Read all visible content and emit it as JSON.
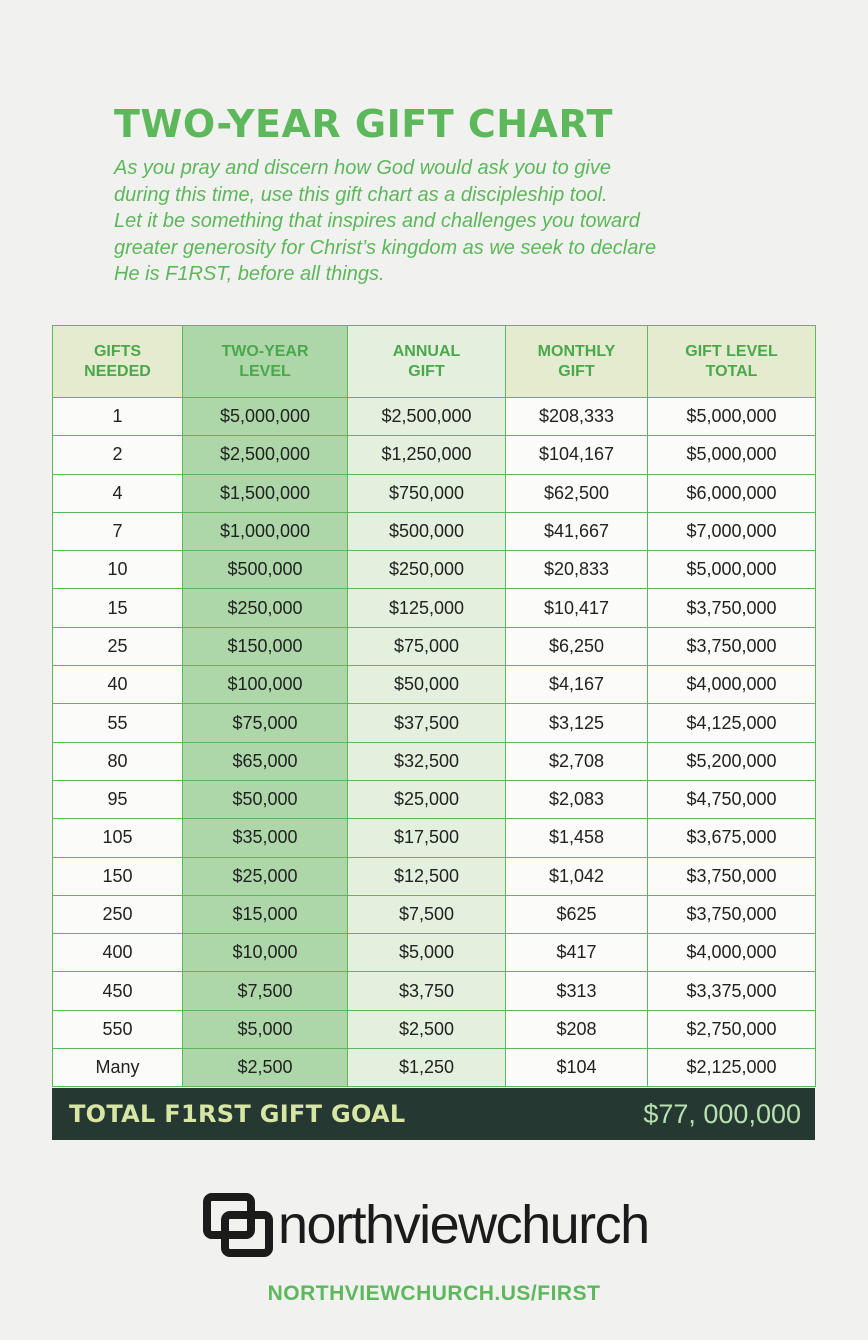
{
  "header": {
    "title": "TWO-YEAR GIFT CHART",
    "intro_lines": [
      "As you pray and discern how God would ask you to give",
      "during this time, use this gift chart as a discipleship tool.",
      "Let it be something that inspires and challenges you toward",
      "greater generosity for Christ’s kingdom as we seek to declare",
      "He is F1RST, before all things."
    ]
  },
  "table": {
    "headers": [
      [
        "GIFTS",
        "NEEDED"
      ],
      [
        "TWO-YEAR",
        "LEVEL"
      ],
      [
        "ANNUAL",
        "GIFT"
      ],
      [
        "MONTHLY",
        "GIFT"
      ],
      [
        "GIFT LEVEL",
        "TOTAL"
      ]
    ],
    "rows": [
      [
        "1",
        "$5,000,000",
        "$2,500,000",
        "$208,333",
        "$5,000,000"
      ],
      [
        "2",
        "$2,500,000",
        "$1,250,000",
        "$104,167",
        "$5,000,000"
      ],
      [
        "4",
        "$1,500,000",
        "$750,000",
        "$62,500",
        "$6,000,000"
      ],
      [
        "7",
        "$1,000,000",
        "$500,000",
        "$41,667",
        "$7,000,000"
      ],
      [
        "10",
        "$500,000",
        "$250,000",
        "$20,833",
        "$5,000,000"
      ],
      [
        "15",
        "$250,000",
        "$125,000",
        "$10,417",
        "$3,750,000"
      ],
      [
        "25",
        "$150,000",
        "$75,000",
        "$6,250",
        "$3,750,000"
      ],
      [
        "40",
        "$100,000",
        "$50,000",
        "$4,167",
        "$4,000,000"
      ],
      [
        "55",
        "$75,000",
        "$37,500",
        "$3,125",
        "$4,125,000"
      ],
      [
        "80",
        "$65,000",
        "$32,500",
        "$2,708",
        "$5,200,000"
      ],
      [
        "95",
        "$50,000",
        "$25,000",
        "$2,083",
        "$4,750,000"
      ],
      [
        "105",
        "$35,000",
        "$17,500",
        "$1,458",
        "$3,675,000"
      ],
      [
        "150",
        "$25,000",
        "$12,500",
        "$1,042",
        "$3,750,000"
      ],
      [
        "250",
        "$15,000",
        "$7,500",
        "$625",
        "$3,750,000"
      ],
      [
        "400",
        "$10,000",
        "$5,000",
        "$417",
        "$4,000,000"
      ],
      [
        "450",
        "$7,500",
        "$3,750",
        "$313",
        "$3,375,000"
      ],
      [
        "550",
        "$5,000",
        "$2,500",
        "$208",
        "$2,750,000"
      ],
      [
        "Many",
        "$2,500",
        "$1,250",
        "$104",
        "$2,125,000"
      ]
    ]
  },
  "total": {
    "label": "TOTAL F1RST GIFT GOAL",
    "value": "$77, 000,000"
  },
  "footer": {
    "logo_text": "northviewchurch",
    "logo_icon": "northview-logo-mark",
    "url": "NORTHVIEWCHURCH.US/FIRST"
  },
  "colors": {
    "accent_green": "#5cb85a",
    "header_bg": "#e4ebcf",
    "two_year_col_bg": "#add7a9",
    "annual_col_bg": "#e3f0de",
    "total_bar_bg": "#263832",
    "total_label": "#d7e6a2"
  }
}
